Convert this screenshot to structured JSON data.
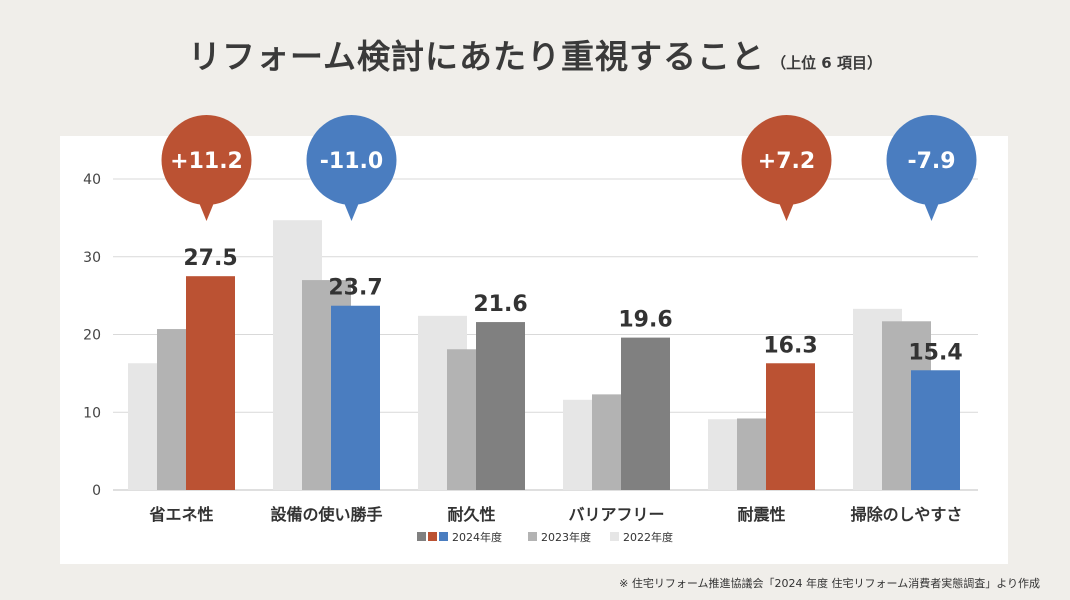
{
  "title": "リフォーム検討にあたり重視すること",
  "subtitle": "（上位 6 項目）",
  "source": "※ 住宅リフォーム推進協議会「2024 年度 住宅リフォーム消費者実態調査」より作成",
  "colors": {
    "y2022": "#e6e6e6",
    "y2023": "#b3b3b3",
    "neutral": "#808080",
    "increase": "#bb5233",
    "decrease": "#4a7dc0"
  },
  "chart_data": {
    "type": "bar",
    "categories": [
      "省エネ性",
      "設備の使い勝手",
      "耐久性",
      "バリアフリー",
      "耐震性",
      "掃除のしやすさ"
    ],
    "series": [
      {
        "name": "2022年度",
        "values": [
          16.3,
          34.7,
          22.4,
          11.6,
          9.1,
          23.3
        ]
      },
      {
        "name": "2023年度",
        "values": [
          20.7,
          27.0,
          18.1,
          12.3,
          9.2,
          21.7
        ]
      },
      {
        "name": "2024年度",
        "values": [
          27.5,
          23.7,
          21.6,
          19.6,
          16.3,
          15.4
        ]
      }
    ],
    "highlight_2024": [
      "increase",
      "decrease",
      "neutral",
      "neutral",
      "increase",
      "decrease"
    ],
    "value_labels_2024": [
      "27.5",
      "23.7",
      "21.6",
      "19.6",
      "16.3",
      "15.4"
    ],
    "change_bubbles": [
      {
        "category": "省エネ性",
        "label": "+11.2",
        "kind": "increase"
      },
      {
        "category": "設備の使い勝手",
        "label": "-11.0",
        "kind": "decrease"
      },
      {
        "category": "耐震性",
        "label": "+7.2",
        "kind": "increase"
      },
      {
        "category": "掃除のしやすさ",
        "label": "-7.9",
        "kind": "decrease"
      }
    ],
    "y_ticks": [
      0,
      10,
      20,
      30,
      40
    ],
    "ylim": [
      0,
      40
    ],
    "grid": true,
    "legend": {
      "position": "bottom-center",
      "labels": [
        "2024年度",
        "2023年度",
        "2022年度"
      ]
    }
  }
}
